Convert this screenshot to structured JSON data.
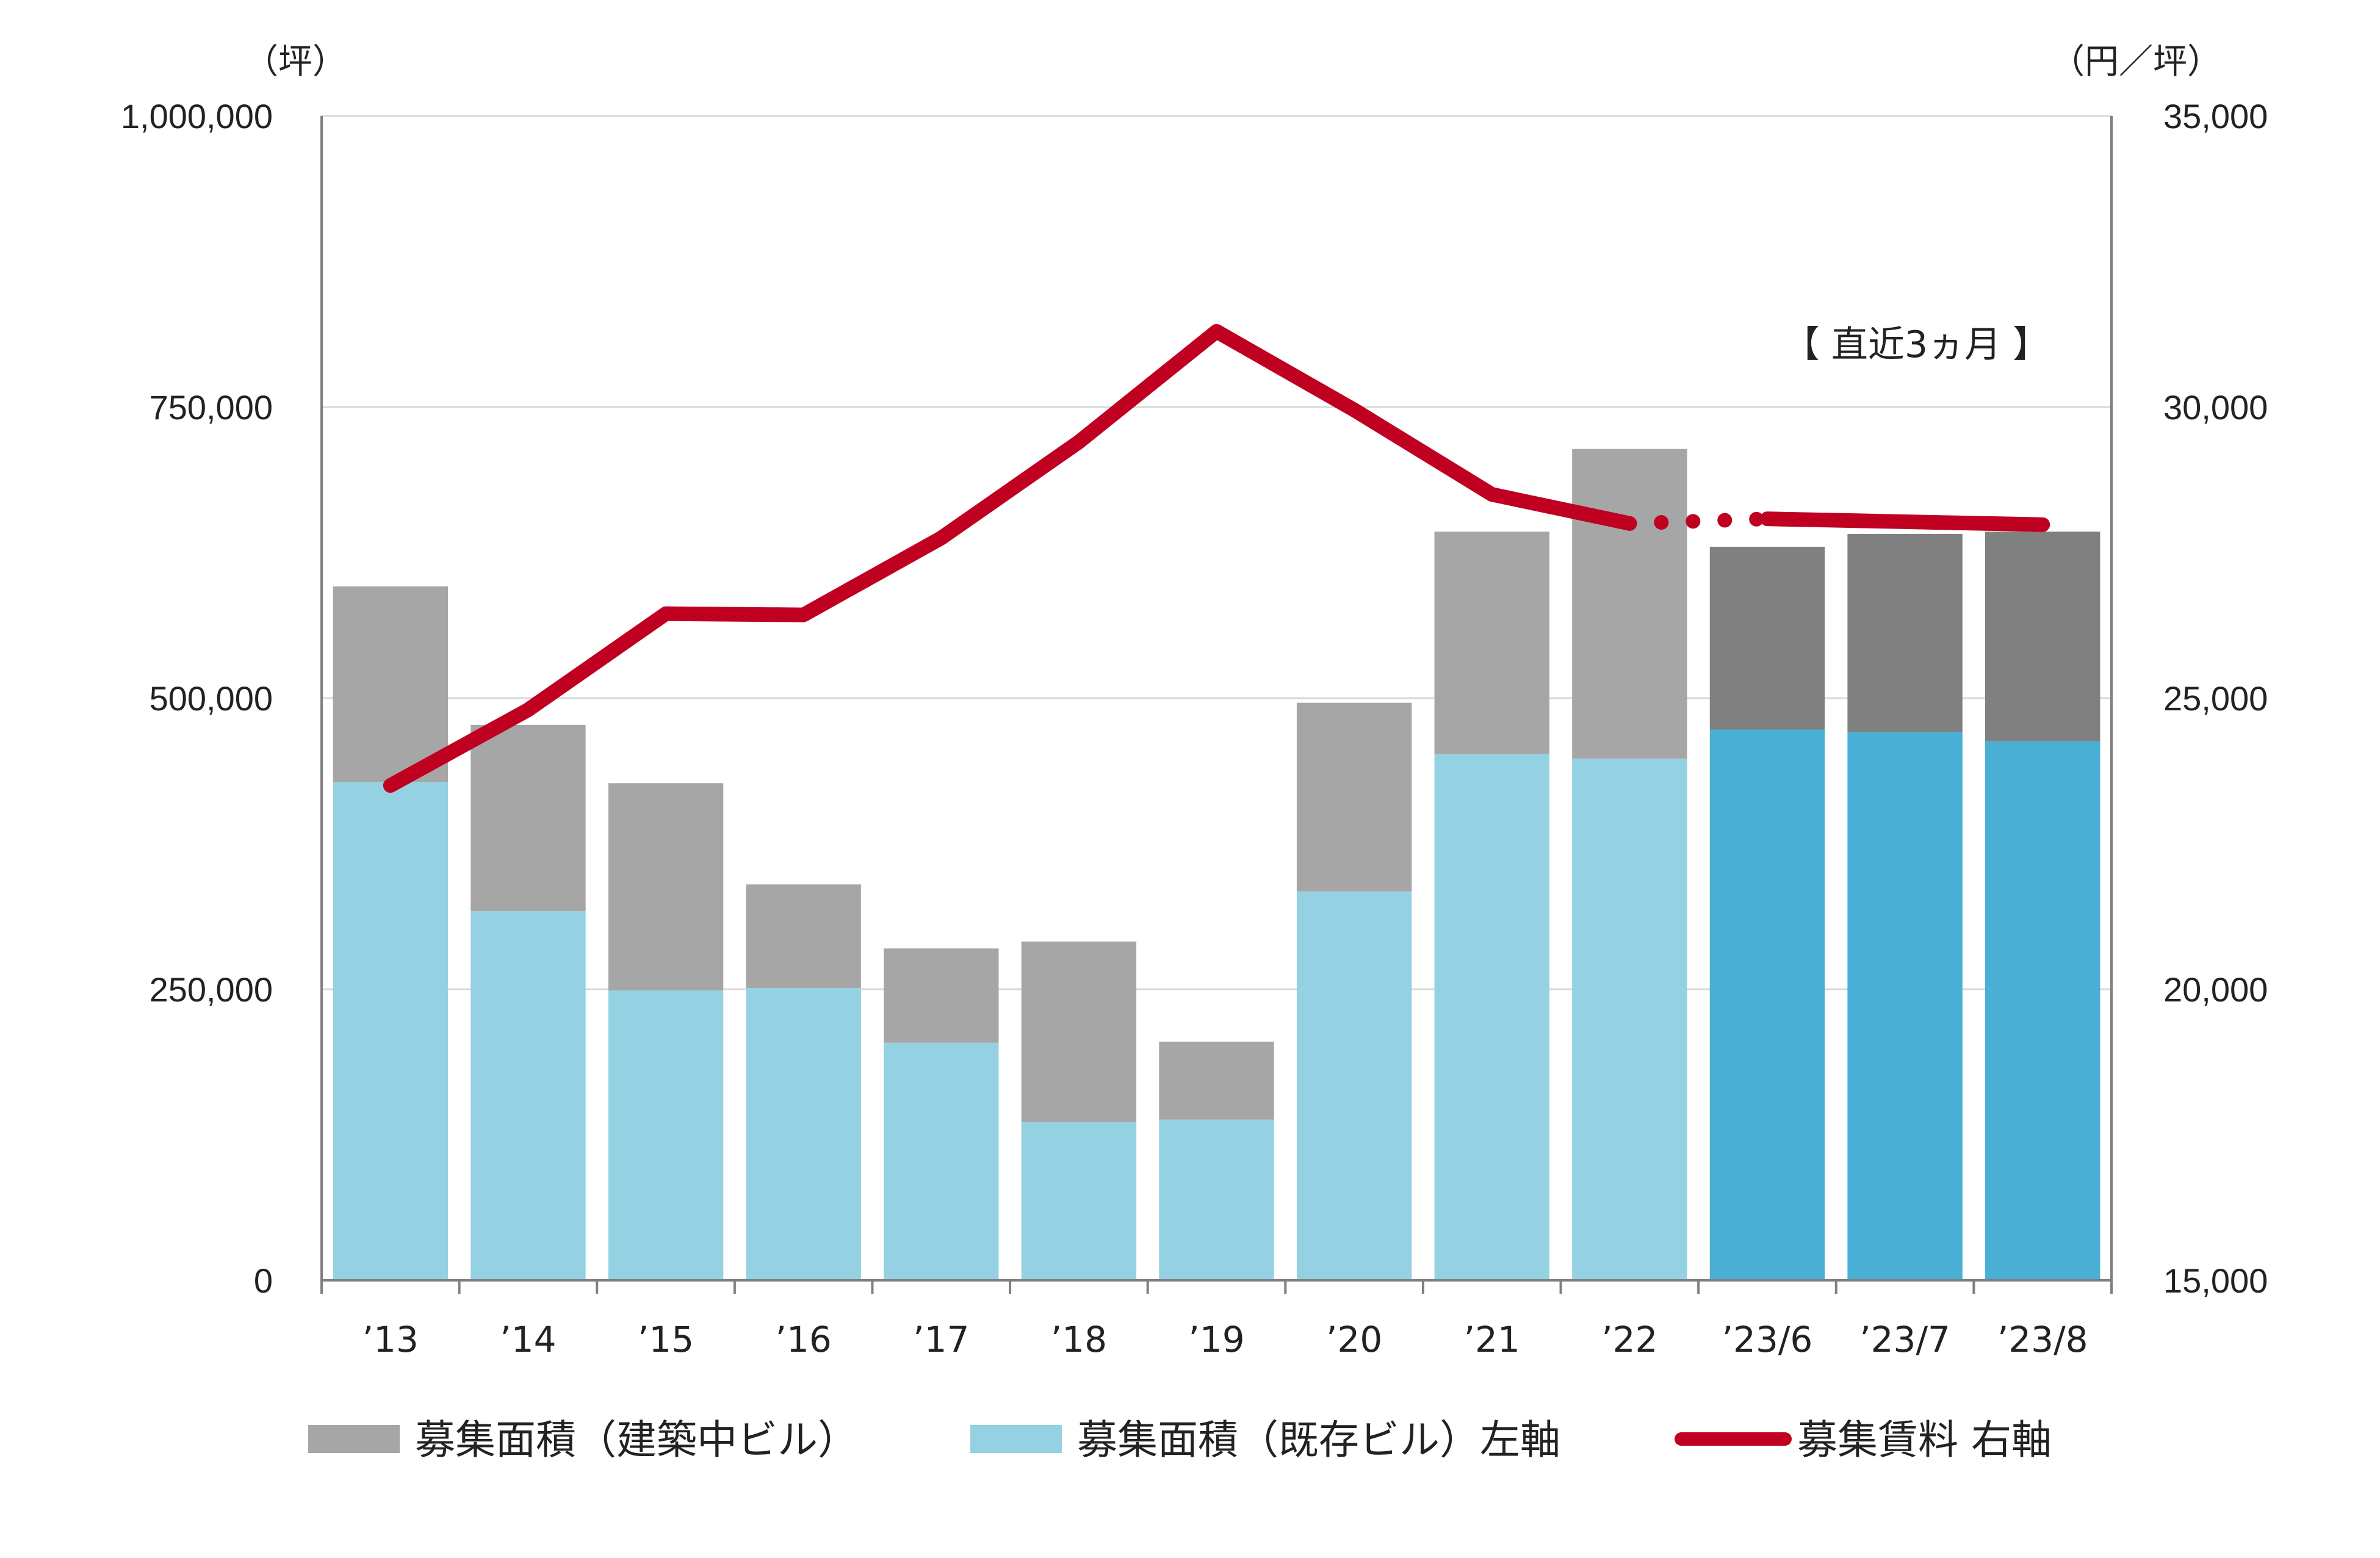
{
  "chart_data": {
    "type": "bar",
    "stacked": true,
    "categories": [
      "’13",
      "’14",
      "’15",
      "’16",
      "’17",
      "’18",
      "’19",
      "’20",
      "’21",
      "’22",
      "’23/6",
      "’23/7",
      "’23/8"
    ],
    "series": [
      {
        "name": "募集面積（既存ビル）左軸",
        "axis": "left",
        "type": "bar",
        "values": [
          428000,
          317000,
          249000,
          251000,
          204000,
          136000,
          138000,
          334000,
          452000,
          448000,
          473000,
          471000,
          463000
        ],
        "color": "#94D1E3",
        "highlight_color": "#4AAFD4"
      },
      {
        "name": "募集面積（建築中ビル）",
        "axis": "left",
        "type": "bar",
        "values": [
          168000,
          160000,
          178000,
          89000,
          81000,
          155000,
          67000,
          162000,
          191000,
          266000,
          157000,
          170000,
          180000
        ],
        "color": "#A6A6A6",
        "highlight_color": "#808080"
      },
      {
        "name": "募集賃料 右軸",
        "axis": "right",
        "type": "line",
        "values": [
          23500,
          24800,
          26450,
          26430,
          27750,
          29400,
          31300,
          29950,
          28500,
          28000,
          28080,
          28030,
          27980
        ],
        "color": "#C00020"
      }
    ],
    "highlight_from_index": 10,
    "dotted_segment": [
      9,
      10
    ],
    "left_axis": {
      "unit": "（坪）",
      "ylim": [
        0,
        1000000
      ],
      "ticks": [
        "0",
        "250,000",
        "500,000",
        "750,000",
        "1,000,000"
      ],
      "tick_values": [
        0,
        250000,
        500000,
        750000,
        1000000
      ]
    },
    "right_axis": {
      "unit": "（円／坪）",
      "ylim": [
        15000,
        35000
      ],
      "ticks": [
        "15,000",
        "20,000",
        "25,000",
        "30,000",
        "35,000"
      ],
      "tick_values": [
        15000,
        20000,
        25000,
        30000,
        35000
      ]
    },
    "annotation": "【 直近3ヵ月 】",
    "grid": true,
    "legend": {
      "placement": "bottom",
      "items": [
        {
          "label": "募集面積（建築中ビル）",
          "kind": "box",
          "color": "#A6A6A6"
        },
        {
          "label": "募集面積（既存ビル）左軸",
          "kind": "box",
          "color": "#94D1E3"
        },
        {
          "label": "募集賃料 右軸",
          "kind": "line",
          "color": "#C00020"
        }
      ]
    }
  }
}
